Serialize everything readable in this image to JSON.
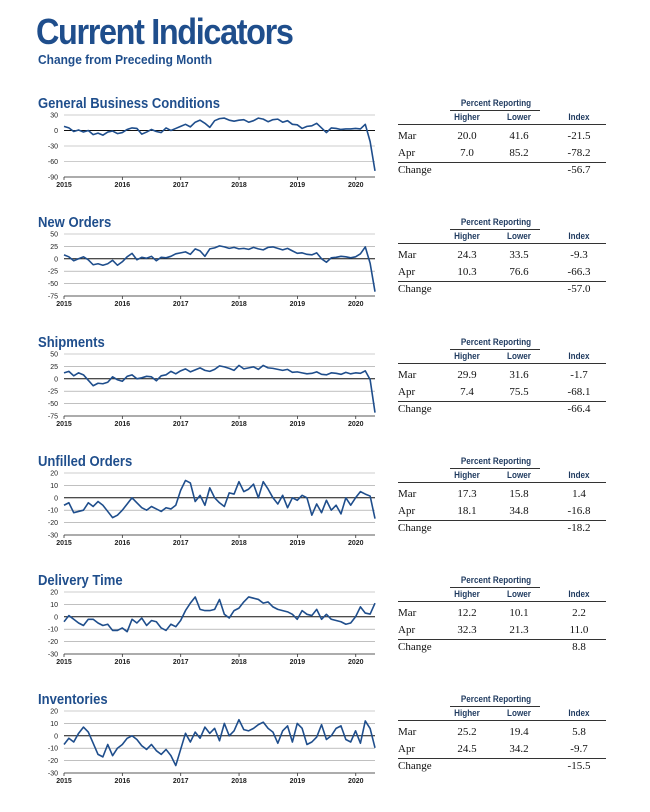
{
  "header": {
    "title": "Current Indicators",
    "subtitle": "Change from Preceding Month"
  },
  "colors": {
    "title": "#1f4e8c",
    "line": "#1f4e8c",
    "zero_line": "#111111",
    "grid": "#9a9a9a"
  },
  "table_labels": {
    "percent_reporting": "Percent Reporting",
    "higher": "Higher",
    "lower": "Lower",
    "index": "Index",
    "mar": "Mar",
    "apr": "Apr",
    "change": "Change"
  },
  "sections": [
    {
      "title": "General Business Conditions",
      "table": {
        "mar": [
          "20.0",
          "41.6",
          "-21.5"
        ],
        "apr": [
          "7.0",
          "85.2",
          "-78.2"
        ],
        "change": "-56.7"
      }
    },
    {
      "title": "New Orders",
      "table": {
        "mar": [
          "24.3",
          "33.5",
          "-9.3"
        ],
        "apr": [
          "10.3",
          "76.6",
          "-66.3"
        ],
        "change": "-57.0"
      }
    },
    {
      "title": "Shipments",
      "table": {
        "mar": [
          "29.9",
          "31.6",
          "-1.7"
        ],
        "apr": [
          "7.4",
          "75.5",
          "-68.1"
        ],
        "change": "-66.4"
      }
    },
    {
      "title": "Unfilled Orders",
      "table": {
        "mar": [
          "17.3",
          "15.8",
          "1.4"
        ],
        "apr": [
          "18.1",
          "34.8",
          "-16.8"
        ],
        "change": "-18.2"
      }
    },
    {
      "title": "Delivery Time",
      "table": {
        "mar": [
          "12.2",
          "10.1",
          "2.2"
        ],
        "apr": [
          "32.3",
          "21.3",
          "11.0"
        ],
        "change": "8.8"
      }
    },
    {
      "title": "Inventories",
      "table": {
        "mar": [
          "25.2",
          "19.4",
          "5.8"
        ],
        "apr": [
          "24.5",
          "34.2",
          "-9.7"
        ],
        "change": "-15.5"
      }
    }
  ],
  "chart_data": [
    {
      "type": "line",
      "title": "General Business Conditions",
      "x_ticks": [
        "2015",
        "2016",
        "2017",
        "2018",
        "2019",
        "2020"
      ],
      "x_range": [
        2015,
        2020.33
      ],
      "ylim": [
        -90,
        30
      ],
      "y_ticks": [
        30,
        0,
        -30,
        -60,
        -90
      ],
      "grid": true,
      "series": [
        {
          "name": "",
          "values": [
            8,
            5,
            -2,
            1,
            -3,
            0,
            -8,
            -5,
            -9,
            -3,
            -1,
            -6,
            -4,
            2,
            5,
            4,
            -7,
            -3,
            2,
            -2,
            -4,
            5,
            0,
            4,
            8,
            12,
            7,
            16,
            20,
            14,
            6,
            19,
            23,
            24,
            20,
            18,
            20,
            21,
            16,
            19,
            24,
            22,
            17,
            21,
            22,
            16,
            19,
            12,
            11,
            4,
            8,
            9,
            14,
            5,
            -4,
            5,
            4,
            2,
            3,
            3,
            4,
            3,
            12,
            -21.5,
            -78.2
          ]
        }
      ]
    },
    {
      "type": "line",
      "title": "New Orders",
      "x_ticks": [
        "2015",
        "2016",
        "2017",
        "2018",
        "2019",
        "2020"
      ],
      "x_range": [
        2015,
        2020.33
      ],
      "ylim": [
        -75,
        50
      ],
      "y_ticks": [
        50,
        25,
        0,
        -25,
        -50,
        -75
      ],
      "grid": true,
      "series": [
        {
          "name": "",
          "values": [
            8,
            4,
            -4,
            0,
            4,
            -2,
            -12,
            -10,
            -13,
            -10,
            -3,
            -13,
            -6,
            4,
            11,
            -2,
            3,
            1,
            5,
            -4,
            3,
            2,
            5,
            10,
            12,
            14,
            9,
            20,
            16,
            5,
            20,
            22,
            26,
            24,
            21,
            23,
            20,
            21,
            19,
            23,
            20,
            18,
            23,
            24,
            21,
            18,
            21,
            16,
            11,
            12,
            9,
            8,
            12,
            0,
            -7,
            2,
            3,
            5,
            4,
            2,
            4,
            10,
            24,
            -9.3,
            -66.3
          ]
        }
      ]
    },
    {
      "type": "line",
      "title": "Shipments",
      "x_ticks": [
        "2015",
        "2016",
        "2017",
        "2018",
        "2019",
        "2020"
      ],
      "x_range": [
        2015,
        2020.33
      ],
      "ylim": [
        -75,
        50
      ],
      "y_ticks": [
        50,
        25,
        0,
        -25,
        -50,
        -75
      ],
      "grid": true,
      "series": [
        {
          "name": "",
          "values": [
            12,
            15,
            6,
            12,
            8,
            -3,
            -14,
            -9,
            -10,
            -7,
            4,
            -2,
            -5,
            5,
            8,
            0,
            2,
            5,
            4,
            -4,
            6,
            8,
            15,
            10,
            16,
            20,
            14,
            18,
            22,
            17,
            15,
            19,
            26,
            24,
            21,
            17,
            27,
            20,
            22,
            24,
            19,
            27,
            22,
            21,
            19,
            17,
            19,
            13,
            14,
            12,
            10,
            11,
            14,
            9,
            8,
            12,
            11,
            9,
            13,
            10,
            12,
            11,
            16,
            -1.7,
            -68.1
          ]
        }
      ]
    },
    {
      "type": "line",
      "title": "Unfilled Orders",
      "x_ticks": [
        "2015",
        "2016",
        "2017",
        "2018",
        "2019",
        "2020"
      ],
      "x_range": [
        2015,
        2020.33
      ],
      "ylim": [
        -30,
        20
      ],
      "y_ticks": [
        20,
        10,
        0,
        -10,
        -20,
        -30
      ],
      "grid": true,
      "series": [
        {
          "name": "",
          "values": [
            -6,
            -4,
            -12,
            -11,
            -10,
            -4,
            -7,
            -3,
            -6,
            -11,
            -16,
            -14,
            -10,
            -5,
            0,
            -4,
            -8,
            -10,
            -7,
            -9,
            -11,
            -8,
            -9,
            -6,
            6,
            14,
            12,
            -3,
            2,
            -6,
            8,
            0,
            -4,
            -7,
            4,
            3,
            13,
            5,
            7,
            11,
            0,
            13,
            7,
            0,
            -5,
            2,
            -8,
            0,
            -2,
            2,
            0,
            -14,
            -5,
            -12,
            -2,
            -10,
            -6,
            -13,
            0,
            -6,
            0,
            5,
            3,
            1.4,
            -16.8
          ]
        }
      ]
    },
    {
      "type": "line",
      "title": "Delivery Time",
      "x_ticks": [
        "2015",
        "2016",
        "2017",
        "2018",
        "2019",
        "2020"
      ],
      "x_range": [
        2015,
        2020.33
      ],
      "ylim": [
        -30,
        20
      ],
      "y_ticks": [
        20,
        10,
        0,
        -10,
        -20,
        -30
      ],
      "grid": true,
      "series": [
        {
          "name": "",
          "values": [
            -4,
            1,
            -2,
            -5,
            -7,
            -2,
            -2,
            -5,
            -7,
            -6,
            -11,
            -11,
            -9,
            -12,
            -2,
            -5,
            -1,
            -7,
            -3,
            -4,
            -9,
            -11,
            -6,
            -8,
            -3,
            5,
            11,
            16,
            6,
            5,
            5,
            6,
            14,
            2,
            -1,
            5,
            7,
            12,
            16,
            15,
            14,
            11,
            12,
            8,
            6,
            5,
            4,
            2,
            -2,
            5,
            2,
            1,
            6,
            -2,
            2,
            -2,
            -3,
            -4,
            -6,
            -5,
            0,
            8,
            3,
            2.2,
            11.0
          ]
        }
      ]
    },
    {
      "type": "line",
      "title": "Inventories",
      "x_ticks": [
        "2015",
        "2016",
        "2017",
        "2018",
        "2019",
        "2020"
      ],
      "x_range": [
        2015,
        2020.33
      ],
      "ylim": [
        -30,
        20
      ],
      "y_ticks": [
        20,
        10,
        0,
        -10,
        -20,
        -30
      ],
      "grid": true,
      "series": [
        {
          "name": "",
          "values": [
            -7,
            -2,
            -5,
            2,
            7,
            3,
            -6,
            -15,
            -17,
            -7,
            -16,
            -10,
            -7,
            -2,
            0,
            -3,
            -8,
            -11,
            -7,
            -12,
            -15,
            -11,
            -16,
            -24,
            -11,
            2,
            -5,
            3,
            -2,
            7,
            2,
            6,
            -4,
            10,
            0,
            4,
            13,
            5,
            4,
            6,
            9,
            11,
            6,
            3,
            -6,
            4,
            8,
            -5,
            10,
            6,
            -7,
            -5,
            -1,
            9,
            -3,
            0,
            6,
            8,
            -3,
            -5,
            4,
            -6,
            12,
            5.8,
            -9.7
          ]
        }
      ]
    }
  ]
}
